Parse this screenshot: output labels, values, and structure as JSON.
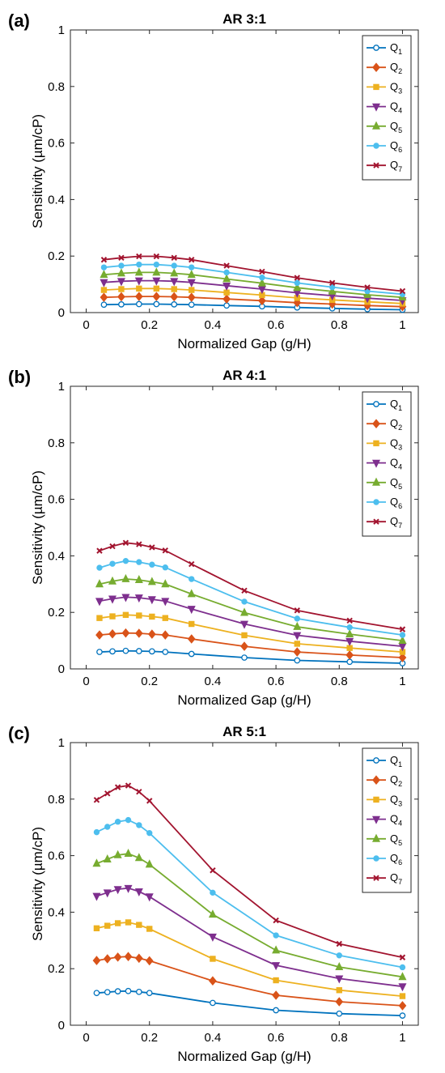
{
  "chart_data": [
    {
      "type": "line",
      "panel_label": "(a)",
      "title": "AR 3:1",
      "xlabel": "Normalized Gap (g/H)",
      "ylabel": "Sensitivity (µm/cP)",
      "xlim": [
        -0.05,
        1.05
      ],
      "ylim": [
        0,
        1
      ],
      "xticks": [
        "0",
        "0.2",
        "0.4",
        "0.6",
        "0.8",
        "1"
      ],
      "yticks": [
        "0",
        "0.2",
        "0.4",
        "0.6",
        "0.8",
        "1"
      ],
      "legend_position": "top-right",
      "x": [
        0.056,
        0.111,
        0.167,
        0.222,
        0.278,
        0.333,
        0.444,
        0.556,
        0.667,
        0.778,
        0.889,
        1.0
      ],
      "series": [
        {
          "name": "Q",
          "sub": "1",
          "color": "#0072BD",
          "marker": "circle",
          "values": [
            0.028,
            0.029,
            0.03,
            0.03,
            0.029,
            0.028,
            0.025,
            0.022,
            0.018,
            0.015,
            0.012,
            0.01
          ]
        },
        {
          "name": "Q",
          "sub": "2",
          "color": "#D95319",
          "marker": "diamond",
          "values": [
            0.054,
            0.056,
            0.057,
            0.057,
            0.056,
            0.054,
            0.048,
            0.042,
            0.035,
            0.03,
            0.025,
            0.021
          ]
        },
        {
          "name": "Q",
          "sub": "3",
          "color": "#EDB120",
          "marker": "square",
          "values": [
            0.08,
            0.083,
            0.085,
            0.085,
            0.083,
            0.08,
            0.071,
            0.062,
            0.052,
            0.045,
            0.038,
            0.032
          ]
        },
        {
          "name": "Q",
          "sub": "4",
          "color": "#7E2F8E",
          "marker": "triangle-down",
          "values": [
            0.107,
            0.111,
            0.113,
            0.113,
            0.111,
            0.107,
            0.095,
            0.083,
            0.07,
            0.06,
            0.051,
            0.043
          ]
        },
        {
          "name": "Q",
          "sub": "5",
          "color": "#77AC30",
          "marker": "triangle-up",
          "values": [
            0.134,
            0.139,
            0.142,
            0.142,
            0.139,
            0.134,
            0.119,
            0.104,
            0.088,
            0.075,
            0.063,
            0.054
          ]
        },
        {
          "name": "Q",
          "sub": "6",
          "color": "#4DBEEE",
          "marker": "dot",
          "values": [
            0.16,
            0.166,
            0.17,
            0.17,
            0.166,
            0.16,
            0.142,
            0.124,
            0.105,
            0.09,
            0.076,
            0.065
          ]
        },
        {
          "name": "Q",
          "sub": "7",
          "color": "#A2142F",
          "marker": "x",
          "values": [
            0.187,
            0.194,
            0.199,
            0.199,
            0.194,
            0.187,
            0.166,
            0.145,
            0.123,
            0.105,
            0.089,
            0.076
          ]
        }
      ]
    },
    {
      "type": "line",
      "panel_label": "(b)",
      "title": "AR 4:1",
      "xlabel": "Normalized Gap (g/H)",
      "ylabel": "Sensitivity (µm/cP)",
      "xlim": [
        -0.05,
        1.05
      ],
      "ylim": [
        0,
        1
      ],
      "xticks": [
        "0",
        "0.2",
        "0.4",
        "0.6",
        "0.8",
        "1"
      ],
      "yticks": [
        "0",
        "0.2",
        "0.4",
        "0.6",
        "0.8",
        "1"
      ],
      "legend_position": "top-right",
      "x": [
        0.042,
        0.083,
        0.125,
        0.167,
        0.208,
        0.25,
        0.333,
        0.5,
        0.667,
        0.833,
        1.0
      ],
      "series": [
        {
          "name": "Q",
          "sub": "1",
          "color": "#0072BD",
          "marker": "circle",
          "values": [
            0.06,
            0.062,
            0.064,
            0.063,
            0.062,
            0.06,
            0.053,
            0.04,
            0.03,
            0.025,
            0.02
          ]
        },
        {
          "name": "Q",
          "sub": "2",
          "color": "#D95319",
          "marker": "diamond",
          "values": [
            0.12,
            0.124,
            0.127,
            0.126,
            0.123,
            0.12,
            0.106,
            0.08,
            0.06,
            0.049,
            0.04
          ]
        },
        {
          "name": "Q",
          "sub": "3",
          "color": "#EDB120",
          "marker": "square",
          "values": [
            0.18,
            0.186,
            0.191,
            0.189,
            0.185,
            0.18,
            0.159,
            0.119,
            0.089,
            0.074,
            0.06
          ]
        },
        {
          "name": "Q",
          "sub": "4",
          "color": "#7E2F8E",
          "marker": "triangle-down",
          "values": [
            0.24,
            0.248,
            0.254,
            0.252,
            0.246,
            0.24,
            0.212,
            0.159,
            0.119,
            0.098,
            0.08
          ]
        },
        {
          "name": "Q",
          "sub": "5",
          "color": "#77AC30",
          "marker": "triangle-up",
          "values": [
            0.3,
            0.31,
            0.318,
            0.315,
            0.308,
            0.3,
            0.265,
            0.199,
            0.149,
            0.123,
            0.1
          ]
        },
        {
          "name": "Q",
          "sub": "6",
          "color": "#4DBEEE",
          "marker": "dot",
          "values": [
            0.358,
            0.372,
            0.382,
            0.378,
            0.369,
            0.359,
            0.318,
            0.238,
            0.178,
            0.147,
            0.12
          ]
        },
        {
          "name": "Q",
          "sub": "7",
          "color": "#A2142F",
          "marker": "x",
          "values": [
            0.418,
            0.434,
            0.446,
            0.441,
            0.43,
            0.419,
            0.371,
            0.277,
            0.207,
            0.171,
            0.14
          ]
        }
      ]
    },
    {
      "type": "line",
      "panel_label": "(c)",
      "title": "AR 5:1",
      "xlabel": "Normalized Gap (g/H)",
      "ylabel": "Sensitivity (µm/cP)",
      "xlim": [
        -0.05,
        1.05
      ],
      "ylim": [
        0,
        1
      ],
      "xticks": [
        "0",
        "0.2",
        "0.4",
        "0.6",
        "0.8",
        "1"
      ],
      "yticks": [
        "0",
        "0.2",
        "0.4",
        "0.6",
        "0.8",
        "1"
      ],
      "legend_position": "top-right",
      "x": [
        0.033,
        0.067,
        0.1,
        0.133,
        0.167,
        0.2,
        0.4,
        0.6,
        0.8,
        1.0
      ],
      "series": [
        {
          "name": "Q",
          "sub": "1",
          "color": "#0072BD",
          "marker": "circle",
          "values": [
            0.114,
            0.117,
            0.12,
            0.121,
            0.118,
            0.114,
            0.079,
            0.053,
            0.041,
            0.034
          ]
        },
        {
          "name": "Q",
          "sub": "2",
          "color": "#D95319",
          "marker": "diamond",
          "values": [
            0.229,
            0.235,
            0.241,
            0.243,
            0.237,
            0.228,
            0.157,
            0.106,
            0.083,
            0.069
          ]
        },
        {
          "name": "Q",
          "sub": "3",
          "color": "#EDB120",
          "marker": "square",
          "values": [
            0.343,
            0.352,
            0.361,
            0.364,
            0.355,
            0.341,
            0.235,
            0.159,
            0.124,
            0.103
          ]
        },
        {
          "name": "Q",
          "sub": "4",
          "color": "#7E2F8E",
          "marker": "triangle-down",
          "values": [
            0.457,
            0.469,
            0.481,
            0.485,
            0.473,
            0.455,
            0.313,
            0.212,
            0.165,
            0.137
          ]
        },
        {
          "name": "Q",
          "sub": "5",
          "color": "#77AC30",
          "marker": "triangle-up",
          "values": [
            0.572,
            0.587,
            0.602,
            0.607,
            0.592,
            0.569,
            0.392,
            0.265,
            0.206,
            0.171
          ]
        },
        {
          "name": "Q",
          "sub": "6",
          "color": "#4DBEEE",
          "marker": "dot",
          "values": [
            0.683,
            0.702,
            0.72,
            0.726,
            0.708,
            0.68,
            0.469,
            0.318,
            0.247,
            0.205
          ]
        },
        {
          "name": "Q",
          "sub": "7",
          "color": "#A2142F",
          "marker": "x",
          "values": [
            0.797,
            0.82,
            0.842,
            0.848,
            0.826,
            0.794,
            0.548,
            0.371,
            0.288,
            0.24
          ]
        }
      ]
    }
  ]
}
